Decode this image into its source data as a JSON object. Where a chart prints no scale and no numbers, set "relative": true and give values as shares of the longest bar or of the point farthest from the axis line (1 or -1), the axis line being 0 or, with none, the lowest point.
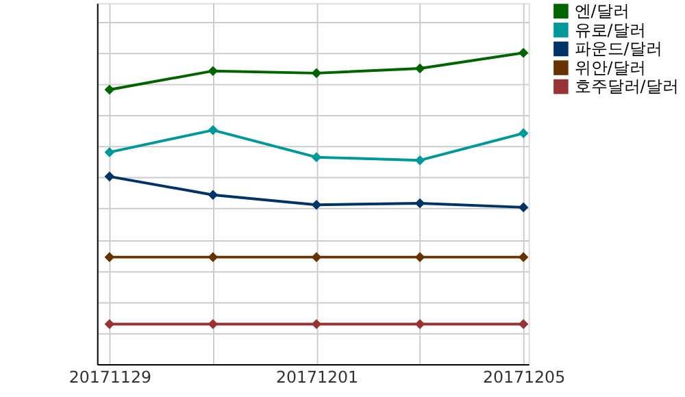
{
  "chart_data": {
    "type": "line",
    "relative": true,
    "categories": [
      "20171129",
      null,
      "20171201",
      null,
      "20171205"
    ],
    "series": [
      {
        "name": "엔/달러",
        "color": "#006400",
        "values": [
          0.882,
          0.942,
          0.935,
          0.95,
          1
        ]
      },
      {
        "name": "유로/달러",
        "color": "#009999",
        "values": [
          0.681,
          0.752,
          0.665,
          0.655,
          0.742
        ]
      },
      {
        "name": "파운드/달러",
        "color": "#003366",
        "values": [
          0.603,
          0.544,
          0.512,
          0.517,
          0.504
        ]
      },
      {
        "name": "위안/달러",
        "color": "#663300",
        "values": [
          0.344,
          0.344,
          0.344,
          0.344,
          0.344
        ]
      },
      {
        "name": "호주달러/달러",
        "color": "#993333",
        "values": [
          0.129,
          0.129,
          0.129,
          0.129,
          0.129
        ]
      }
    ],
    "grid": true,
    "legend": "top right",
    "marker": "diamond",
    "line_style": "solid"
  }
}
